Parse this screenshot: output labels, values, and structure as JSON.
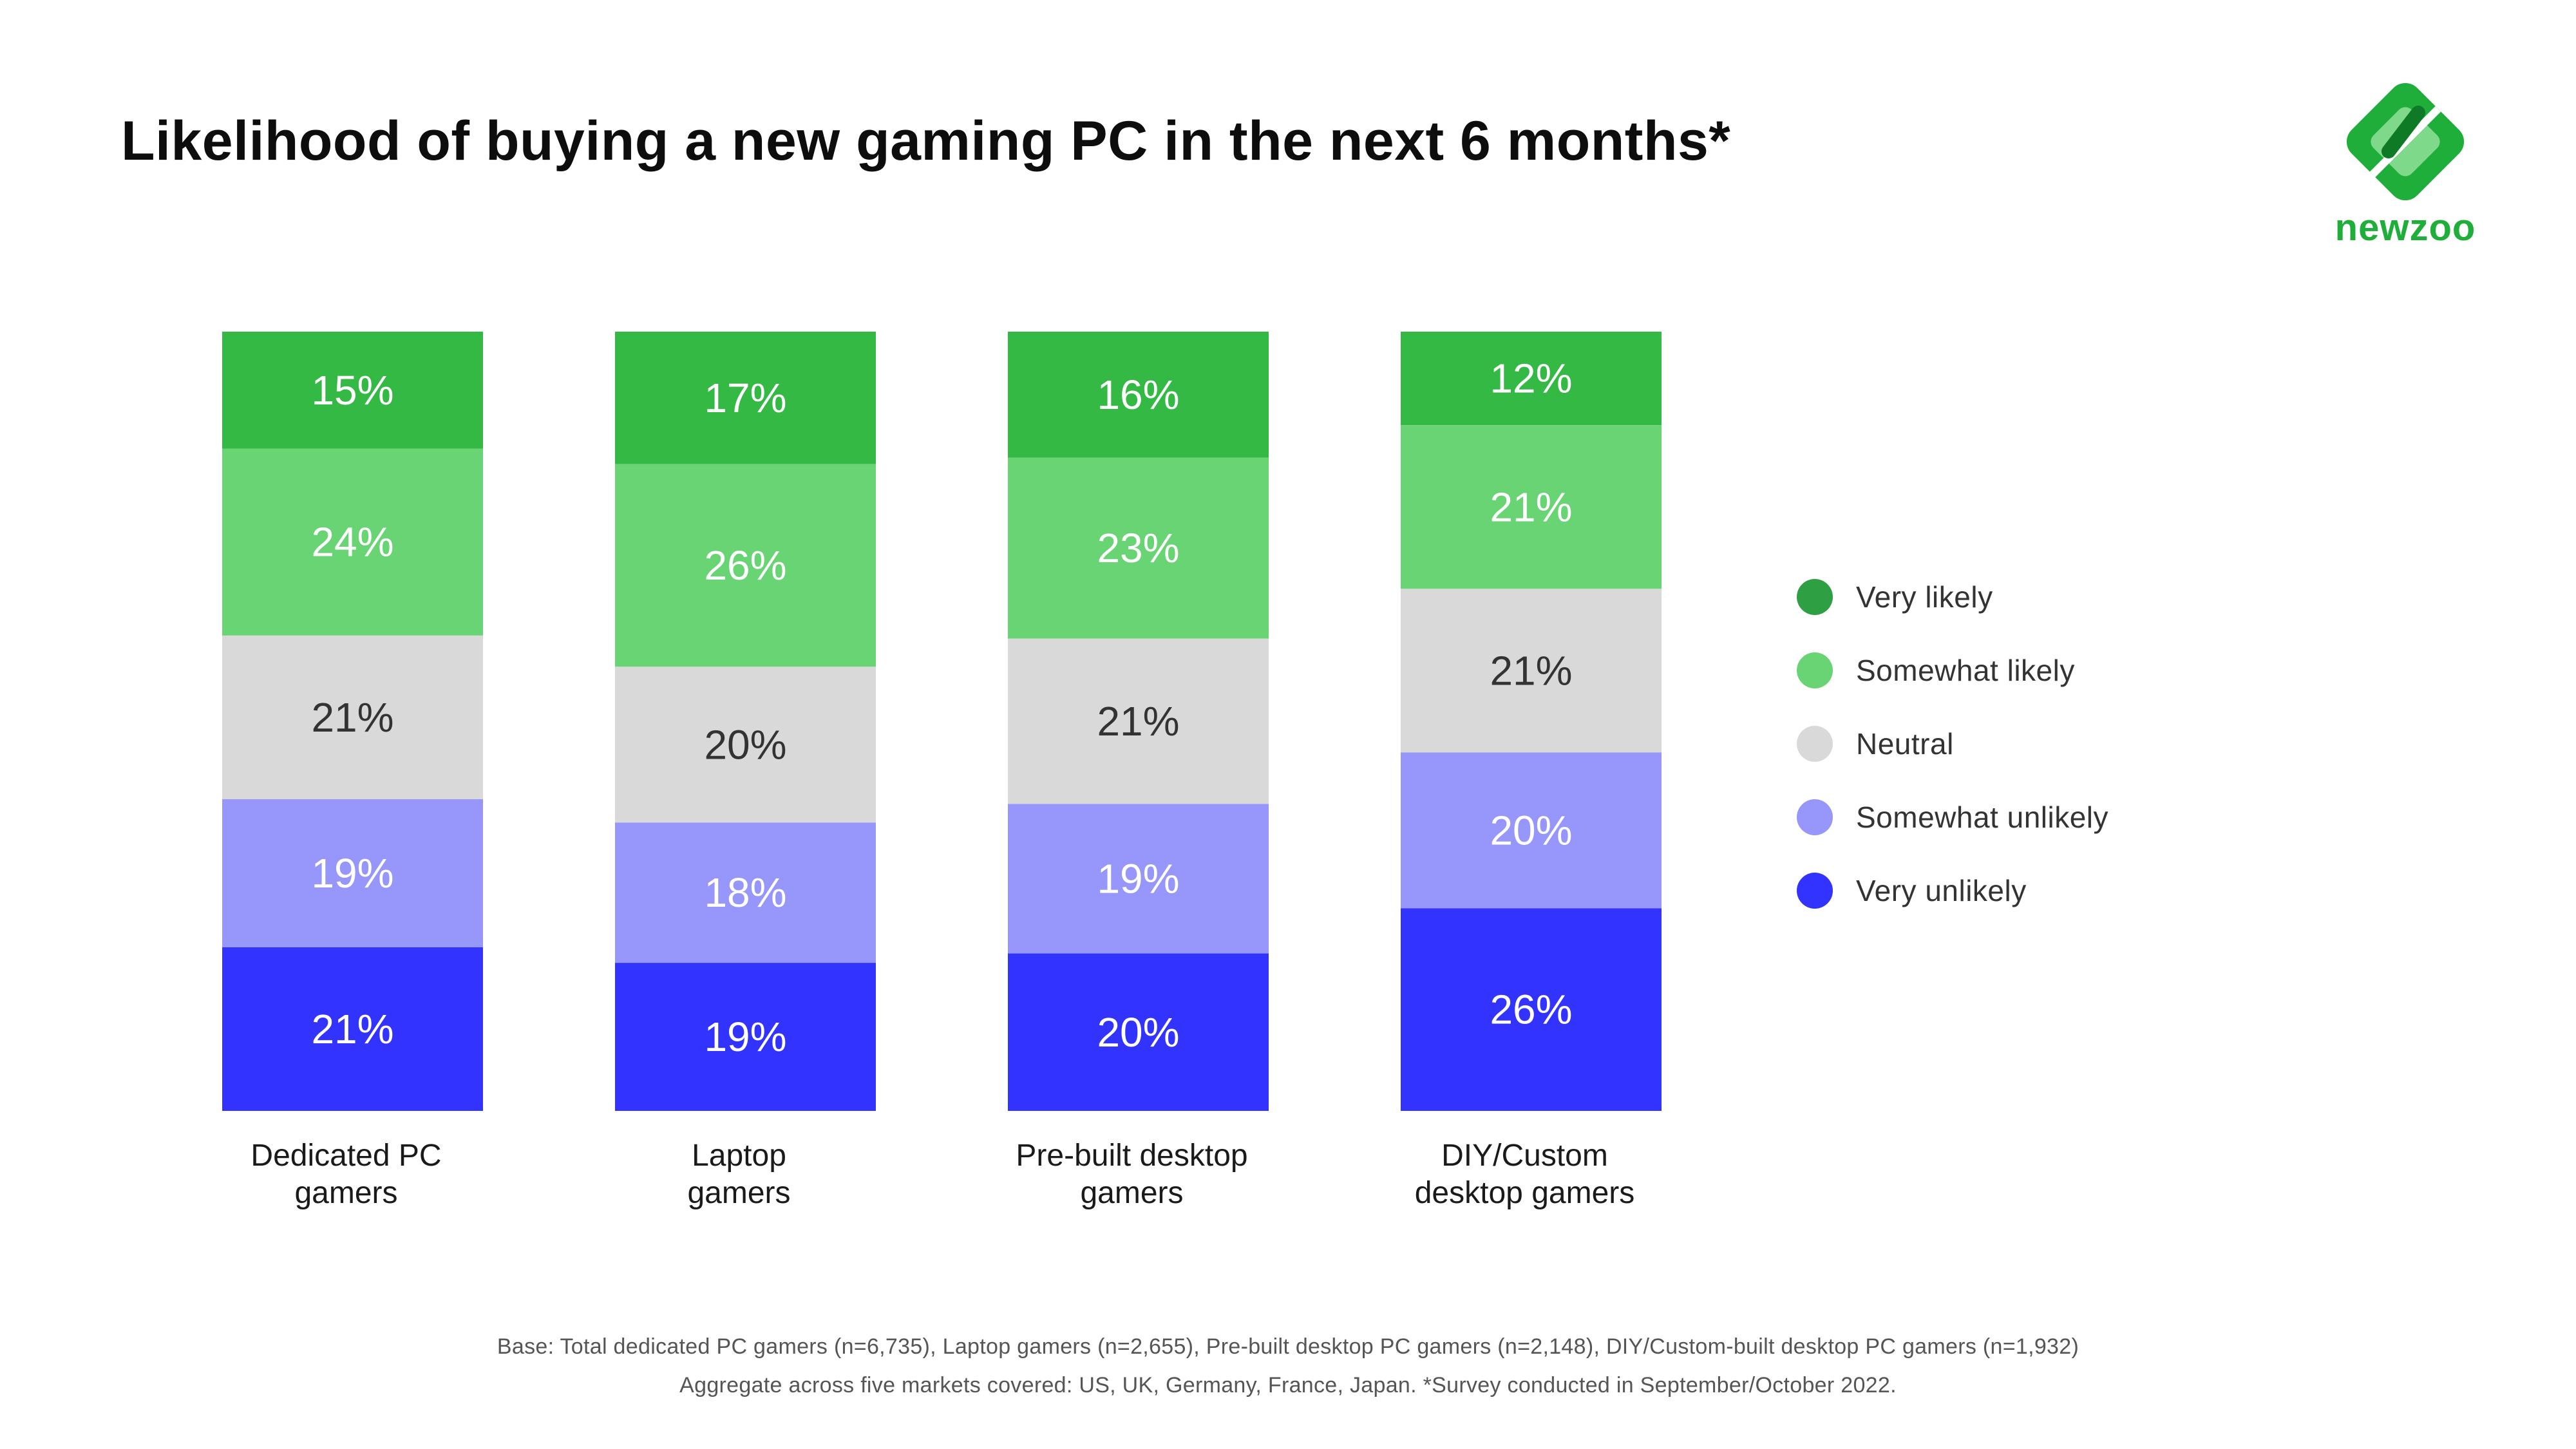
{
  "page": {
    "title": "Likelihood of buying a new gaming PC in the next 6 months*",
    "logo_text": "newzoo",
    "footnote_1": "Base: Total dedicated PC gamers (n=6,735), Laptop gamers (n=2,655), Pre-built desktop PC gamers (n=2,148), DIY/Custom-built desktop PC gamers (n=1,932)",
    "footnote_2": "Aggregate across five markets covered: US, UK, Germany, France, Japan.  *Survey conducted in September/October 2022."
  },
  "chart_data": {
    "type": "bar",
    "stacked": true,
    "title": "Likelihood of buying a new gaming PC in the next 6 months*",
    "xlabel": "",
    "ylabel": "",
    "ylim": [
      0,
      100
    ],
    "grid": false,
    "legend_position": "right",
    "categories": [
      [
        "Dedicated PC",
        "gamers"
      ],
      [
        "Laptop",
        "gamers"
      ],
      [
        "Pre-built desktop",
        "gamers"
      ],
      [
        "DIY/Custom",
        "desktop gamers"
      ]
    ],
    "series": [
      {
        "name": "Very likely",
        "color": "#33b944",
        "legend_color": "#2ea043",
        "label_color": "#ffffff",
        "values": [
          15,
          17,
          16,
          12
        ]
      },
      {
        "name": "Somewhat likely",
        "color": "#69d473",
        "legend_color": "#69d473",
        "label_color": "#ffffff",
        "values": [
          24,
          26,
          23,
          21
        ]
      },
      {
        "name": "Neutral",
        "color": "#d9d9d9",
        "legend_color": "#d9d9d9",
        "label_color": "#333333",
        "values": [
          21,
          20,
          21,
          21
        ]
      },
      {
        "name": "Somewhat unlikely",
        "color": "#9696fb",
        "legend_color": "#9696fb",
        "label_color": "#ffffff",
        "values": [
          19,
          18,
          19,
          20
        ]
      },
      {
        "name": "Very unlikely",
        "color": "#3333ff",
        "legend_color": "#3333ff",
        "label_color": "#ffffff",
        "values": [
          21,
          19,
          20,
          26
        ]
      }
    ]
  }
}
